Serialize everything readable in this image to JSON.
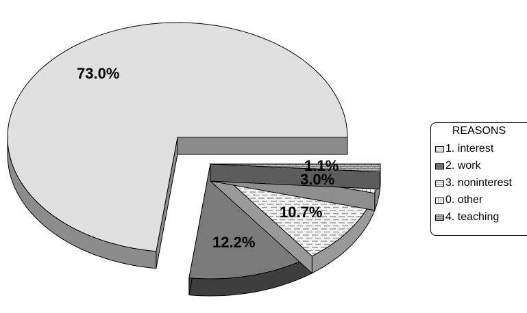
{
  "chart_data": {
    "type": "pie",
    "three_d": true,
    "legend_title": "REASONS",
    "legend_position": "right",
    "slices": [
      {
        "label": "1. interest",
        "value": 73.0,
        "value_label": "73.0%",
        "color": "#e0e0e0",
        "pattern": "solid-light"
      },
      {
        "label": "2. work",
        "value": 12.2,
        "value_label": "12.2%",
        "color": "#7a7a7a",
        "pattern": "solid-dark"
      },
      {
        "label": "3. noninterest",
        "value": 10.7,
        "value_label": "10.7%",
        "color": "#f4f4f4",
        "pattern": "horizontal-dashes"
      },
      {
        "label": "0. other",
        "value": 3.0,
        "value_label": "3.0%",
        "color": "#f4f4f4",
        "pattern": "grid"
      },
      {
        "label": "4. teaching",
        "value": 1.1,
        "value_label": "1.1%",
        "color": "#b0b0b0",
        "pattern": "brick"
      }
    ]
  }
}
